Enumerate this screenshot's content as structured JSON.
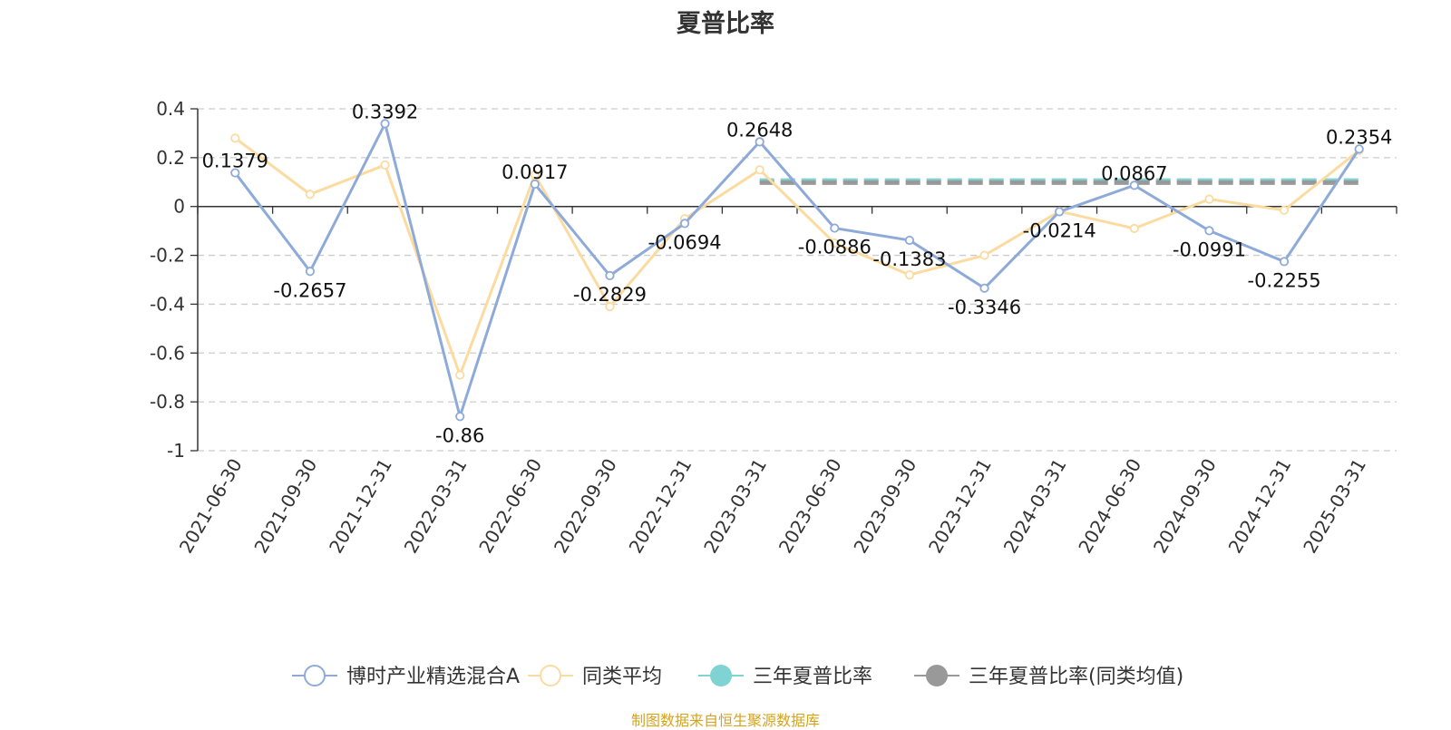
{
  "chart_data": {
    "type": "line",
    "title": "夏普比率",
    "source_note": "制图数据来自恒生聚源数据库",
    "categories": [
      "2021-06-30",
      "2021-09-30",
      "2021-12-31",
      "2022-03-31",
      "2022-06-30",
      "2022-09-30",
      "2022-12-31",
      "2023-03-31",
      "2023-06-30",
      "2023-09-30",
      "2023-12-31",
      "2024-03-31",
      "2024-06-30",
      "2024-09-30",
      "2024-12-31",
      "2025-03-31"
    ],
    "yticks": [
      "0.4",
      "0.2",
      "0",
      "-0.2",
      "-0.4",
      "-0.6",
      "-0.8",
      "-1"
    ],
    "ylim": [
      -1,
      0.4
    ],
    "grid": true,
    "legend_position": "bottom",
    "series": [
      {
        "name": "博时产业精选混合A",
        "color": "#8eaad8",
        "values": [
          0.1379,
          -0.2657,
          0.3392,
          -0.86,
          0.0917,
          -0.2829,
          -0.0694,
          0.2648,
          -0.0886,
          -0.1383,
          -0.3346,
          -0.0214,
          0.0867,
          -0.0991,
          -0.2255,
          0.2354
        ],
        "labels": [
          "0.1379",
          "-0.2657",
          "0.3392",
          "-0.86",
          "0.0917",
          "-0.2829",
          "-0.0694",
          "0.2648",
          "-0.0886",
          "-0.1383",
          "-0.3346",
          "-0.0214",
          "0.0867",
          "-0.0991",
          "-0.2255",
          "0.2354"
        ]
      },
      {
        "name": "同类平均",
        "color": "#fbdba0",
        "values": [
          0.28,
          0.05,
          0.17,
          -0.69,
          0.13,
          -0.41,
          -0.05,
          0.15,
          -0.15,
          -0.28,
          -0.2,
          -0.02,
          -0.09,
          0.03,
          -0.015,
          0.23
        ]
      },
      {
        "name": "三年夏普比率",
        "color": "#7fd3d3",
        "x_range": [
          "2023-03-31",
          "2025-03-31"
        ],
        "value": 0.106
      },
      {
        "name": "三年夏普比率(同类均值)",
        "color": "#999999",
        "x_range": [
          "2023-03-31",
          "2025-03-31"
        ],
        "value": 0.098
      }
    ]
  }
}
